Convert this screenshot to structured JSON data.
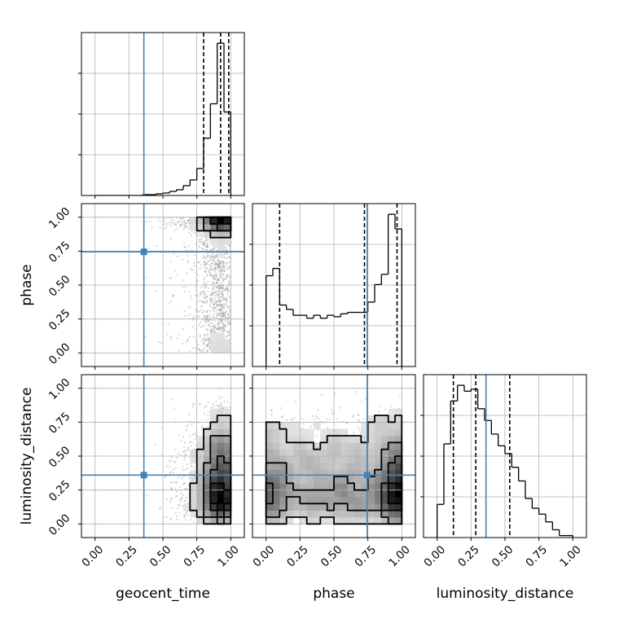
{
  "chart_data": {
    "type": "corner",
    "parameters": [
      "geocent_time",
      "phase",
      "luminosity_distance"
    ],
    "axis_range": [
      -0.1,
      1.1
    ],
    "ticks": [
      0,
      0.25,
      0.5,
      0.75,
      1.0
    ],
    "tick_labels": [
      "0.00",
      "0.25",
      "0.50",
      "0.75",
      "1.00"
    ],
    "grid": true,
    "colors": {
      "histogram": "#000000",
      "truth": "#4682b4",
      "contour": "#000000",
      "points": "#8a8a8a"
    },
    "truths": {
      "geocent_time": 0.36,
      "phase": 0.745,
      "luminosity_distance": 0.36
    },
    "quantiles": {
      "geocent_time": [
        0.8,
        0.925,
        0.985
      ],
      "phase": [
        0.1,
        0.725,
        0.965
      ],
      "luminosity_distance": [
        0.12,
        0.285,
        0.535
      ]
    },
    "histograms": {
      "geocent_time": {
        "bin_edges": [
          0.0,
          0.05,
          0.1,
          0.15,
          0.2,
          0.25,
          0.3,
          0.35,
          0.4,
          0.45,
          0.5,
          0.55,
          0.6,
          0.65,
          0.7,
          0.75,
          0.8,
          0.85,
          0.9,
          0.95,
          1.0
        ],
        "counts": [
          0,
          0,
          0,
          0,
          0,
          0,
          0,
          1,
          1,
          2,
          3,
          5,
          7,
          12,
          19,
          33,
          70,
          112,
          186,
          102
        ]
      },
      "phase": {
        "bin_edges": [
          0.0,
          0.05,
          0.1,
          0.15,
          0.2,
          0.25,
          0.3,
          0.35,
          0.4,
          0.45,
          0.5,
          0.55,
          0.6,
          0.65,
          0.7,
          0.75,
          0.8,
          0.85,
          0.9,
          0.95,
          1.0
        ],
        "counts": [
          62,
          67,
          42,
          39,
          35,
          35,
          33,
          35,
          33,
          35,
          34,
          36,
          37,
          37,
          37,
          44,
          56,
          63,
          104,
          94
        ]
      },
      "luminosity_distance": {
        "bin_edges": [
          0.0,
          0.05,
          0.1,
          0.15,
          0.2,
          0.25,
          0.3,
          0.35,
          0.4,
          0.45,
          0.5,
          0.55,
          0.6,
          0.65,
          0.7,
          0.75,
          0.8,
          0.85,
          0.9,
          0.95,
          1.0
        ],
        "counts": [
          17,
          48,
          70,
          78,
          75,
          76,
          66,
          60,
          53,
          47,
          43,
          36,
          29,
          20,
          15,
          12,
          8,
          4,
          1,
          1
        ]
      }
    },
    "density_2d": {
      "phase_vs_geocent_time": {
        "description": "posterior mass concentrated at geocent_time 0.85-1.0, phase near 0 and near 1",
        "peaks": [
          {
            "x": 0.95,
            "y": 0.98,
            "weight": 1.0
          },
          {
            "x": 0.97,
            "y": 0.06,
            "weight": 0.5
          }
        ]
      },
      "luminosity_distance_vs_geocent_time": {
        "peaks": [
          {
            "x": 0.95,
            "y": 0.22,
            "weight": 1.0
          }
        ]
      },
      "luminosity_distance_vs_phase": {
        "peaks": [
          {
            "x": 0.96,
            "y": 0.22,
            "weight": 1.0
          },
          {
            "x": 0.06,
            "y": 0.22,
            "weight": 0.45
          }
        ]
      }
    }
  }
}
